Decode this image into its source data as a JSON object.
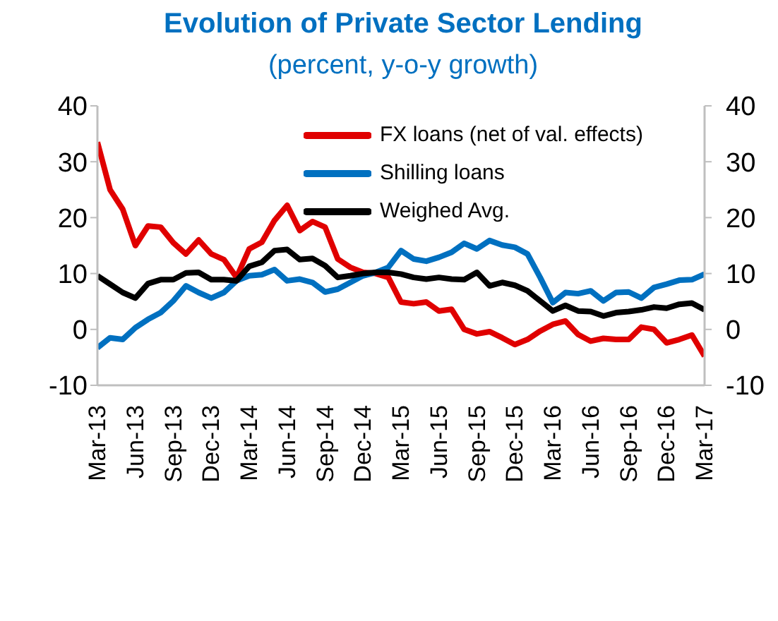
{
  "chart_data": {
    "type": "line",
    "title": "Evolution of Private Sector Lending",
    "subtitle": "(percent, y-o-y growth)",
    "categories": [
      "Mar-13",
      null,
      null,
      "Jun-13",
      null,
      null,
      "Sep-13",
      null,
      null,
      "Dec-13",
      null,
      null,
      "Mar-14",
      null,
      null,
      "Jun-14",
      null,
      null,
      "Sep-14",
      null,
      null,
      "Dec-14",
      null,
      null,
      "Mar-15",
      null,
      null,
      "Jun-15",
      null,
      null,
      "Sep-15",
      null,
      null,
      "Dec-15",
      null,
      null,
      "Mar-16",
      null,
      null,
      "Jun-16",
      null,
      null,
      "Sep-16",
      null,
      null,
      "Dec-16",
      null,
      null,
      "Mar-17"
    ],
    "series": [
      {
        "name": "FX loans (net of val. effects)",
        "color": "#e00000",
        "values": [
          33.5,
          25,
          21.5,
          15,
          18.5,
          18.3,
          15.5,
          13.5,
          16,
          13.5,
          12.5,
          9.3,
          14.4,
          15.6,
          19.5,
          22.2,
          17.7,
          19.3,
          18.3,
          12.6,
          11.1,
          10.2,
          10,
          9.3,
          4.9,
          4.6,
          4.9,
          3.3,
          3.6,
          0,
          -0.8,
          -0.4,
          -1.5,
          -2.7,
          -1.8,
          -0.3,
          0.9,
          1.5,
          -0.9,
          -2.1,
          -1.6,
          -1.8,
          -1.8,
          0.4,
          0,
          -2.4,
          -1.8,
          -1,
          -4.8
        ]
      },
      {
        "name": "Shilling loans",
        "color": "#0070c0",
        "values": [
          -3.3,
          -1.5,
          -1.8,
          0.3,
          1.8,
          3,
          5.1,
          7.8,
          6.6,
          5.6,
          6.6,
          8.7,
          9.6,
          9.8,
          10.7,
          8.7,
          9,
          8.4,
          6.7,
          7.2,
          8.4,
          9.6,
          10.2,
          11.1,
          14.1,
          12.6,
          12.2,
          12.9,
          13.8,
          15.4,
          14.4,
          15.9,
          15.1,
          14.7,
          13.5,
          9.3,
          4.8,
          6.6,
          6.4,
          6.9,
          5.1,
          6.6,
          6.7,
          5.6,
          7.5,
          8.1,
          8.8,
          8.9,
          9.9
        ]
      },
      {
        "name": "Weighed Avg.",
        "color": "#000000",
        "values": [
          9.6,
          8.1,
          6.6,
          5.6,
          8.2,
          8.9,
          8.9,
          10.1,
          10.2,
          8.9,
          8.9,
          8.7,
          11.3,
          12,
          14.1,
          14.3,
          12.5,
          12.7,
          11.4,
          9.3,
          9.6,
          10,
          10.2,
          10.2,
          9.9,
          9.3,
          9,
          9.3,
          9,
          8.9,
          10.2,
          7.8,
          8.4,
          7.9,
          6.9,
          5.1,
          3.3,
          4.3,
          3.3,
          3.2,
          2.4,
          3,
          3.2,
          3.5,
          4,
          3.8,
          4.5,
          4.7,
          3.5
        ]
      }
    ],
    "ylim": [
      -10,
      40
    ],
    "yticks": [
      -10,
      0,
      10,
      20,
      30,
      40
    ],
    "y2lim": [
      -10,
      40
    ],
    "y2ticks": [
      -10,
      0,
      10,
      20,
      30,
      40
    ],
    "grid": false,
    "legend": "top right",
    "marker": "none",
    "line_style": "solid"
  }
}
